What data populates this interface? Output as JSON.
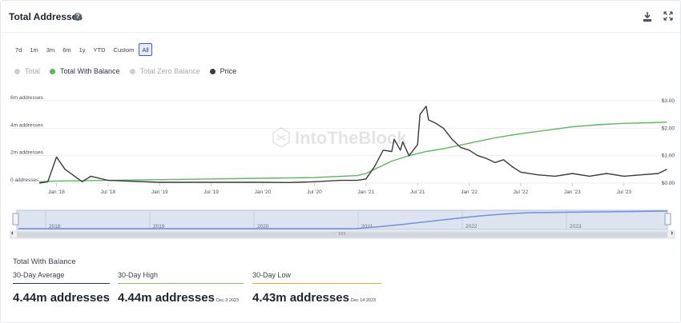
{
  "header": {
    "title": "Total Addresses",
    "help_icon": "question-circle-icon",
    "download_icon": "download-icon",
    "expand_icon": "expand-icon"
  },
  "ranges": [
    "7d",
    "1m",
    "3m",
    "6m",
    "1y",
    "YTD",
    "Custom",
    "All"
  ],
  "active_range": "All",
  "legend": [
    {
      "label": "Total",
      "color": "#cdcfd4",
      "text_color": "#a6a9b0"
    },
    {
      "label": "Total With Balance",
      "color": "#5cb85c",
      "text_color": "#2f3340"
    },
    {
      "label": "Total Zero Balance",
      "color": "#cdcfd4",
      "text_color": "#a6a9b0"
    },
    {
      "label": "Price",
      "color": "#3a3a3a",
      "text_color": "#2f3340"
    }
  ],
  "watermark": "IntoTheBlock",
  "chart_data": {
    "type": "line",
    "x_ticks": [
      "Jan '18",
      "Jul '18",
      "Jan '19",
      "Jul '19",
      "Jan '20",
      "Jul '20",
      "Jan '21",
      "Jul '21",
      "Jan '22",
      "Jul '22",
      "Jan '23",
      "Jul '23"
    ],
    "y_left": {
      "ticks": [
        "0 addresses",
        "2m addresses",
        "4m addresses",
        "6m addresses"
      ],
      "range": [
        0,
        6
      ]
    },
    "y_right": {
      "ticks": [
        "$0.00",
        "$1.00",
        "$2.00",
        "$3.00"
      ],
      "range": [
        0,
        3
      ]
    },
    "series": [
      {
        "name": "Total With Balance",
        "color": "#5cb85c",
        "axis": "left",
        "x": [
          "2017-11",
          "2018-01",
          "2018-07",
          "2019-01",
          "2019-07",
          "2020-01",
          "2020-07",
          "2020-12",
          "2021-01",
          "2021-02",
          "2021-04",
          "2021-06",
          "2021-08",
          "2021-10",
          "2022-01",
          "2022-04",
          "2022-07",
          "2022-10",
          "2023-01",
          "2023-04",
          "2023-07",
          "2023-10",
          "2023-12"
        ],
        "y": [
          0.1,
          0.15,
          0.2,
          0.25,
          0.3,
          0.35,
          0.4,
          0.55,
          0.7,
          1.0,
          1.6,
          2.0,
          2.3,
          2.5,
          2.9,
          3.3,
          3.6,
          3.85,
          4.1,
          4.25,
          4.35,
          4.4,
          4.44
        ]
      },
      {
        "name": "Price",
        "color": "#3a3a3a",
        "axis": "right",
        "x": [
          "2017-11",
          "2017-12",
          "2018-01",
          "2018-02",
          "2018-04",
          "2018-05",
          "2018-07",
          "2019-01",
          "2019-07",
          "2020-01",
          "2020-04",
          "2020-07",
          "2020-10",
          "2020-12",
          "2021-01",
          "2021-02",
          "2021-03",
          "2021-04",
          "2021-04",
          "2021-05",
          "2021-05",
          "2021-06",
          "2021-07",
          "2021-07",
          "2021-08",
          "2021-08",
          "2021-09",
          "2021-10",
          "2021-11",
          "2021-12",
          "2022-01",
          "2022-02",
          "2022-03",
          "2022-04",
          "2022-05",
          "2022-06",
          "2022-07",
          "2022-09",
          "2022-11",
          "2023-01",
          "2023-03",
          "2023-05",
          "2023-07",
          "2023-09",
          "2023-11",
          "2023-12"
        ],
        "y": [
          0.0,
          0.05,
          0.95,
          0.5,
          0.05,
          0.25,
          0.1,
          0.03,
          0.03,
          0.03,
          0.02,
          0.05,
          0.1,
          0.1,
          0.15,
          0.6,
          1.2,
          1.15,
          1.6,
          1.2,
          1.5,
          1.0,
          1.4,
          2.5,
          2.8,
          2.3,
          2.2,
          2.0,
          1.6,
          1.3,
          1.2,
          1.0,
          0.9,
          0.75,
          0.85,
          0.6,
          0.4,
          0.3,
          0.25,
          0.35,
          0.25,
          0.35,
          0.25,
          0.3,
          0.35,
          0.5
        ]
      }
    ],
    "navigator_years": [
      "2018",
      "2019",
      "2020",
      "2021",
      "2022",
      "2023"
    ]
  },
  "stats": {
    "title": "Total With Balance",
    "items": [
      {
        "label": "30-Day Average",
        "value": "4.44m addresses",
        "date": "",
        "color": "#1f3a70"
      },
      {
        "label": "30-Day High",
        "value": "4.44m addresses",
        "date": "Dec 3 2023",
        "color": "#7cc35a"
      },
      {
        "label": "30-Day Low",
        "value": "4.43m addresses",
        "date": "Dec 14 2023",
        "color": "#e0b020"
      }
    ]
  }
}
